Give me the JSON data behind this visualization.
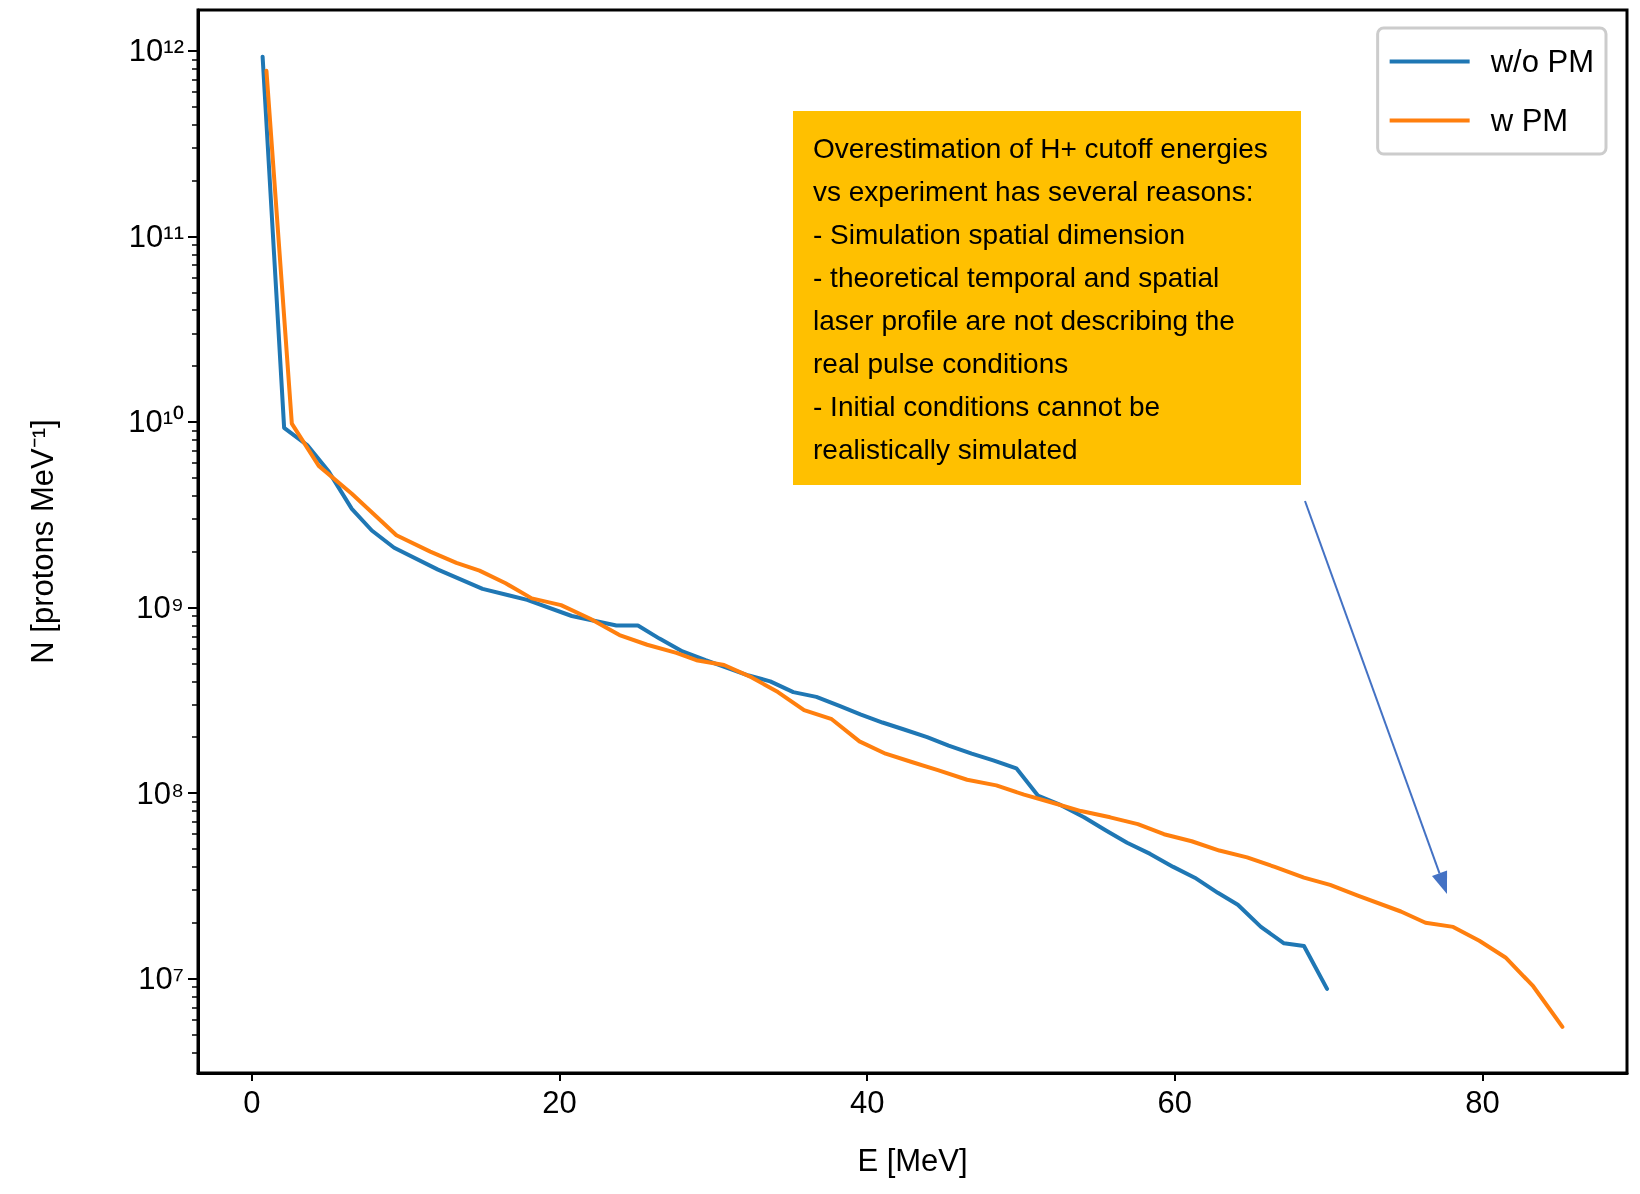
{
  "chart_data": {
    "type": "line",
    "xlabel": "E [MeV]",
    "ylabel": "N [protons MeV⁻¹]",
    "xlim": [
      -3.5,
      89.4
    ],
    "xticks": [
      0,
      20,
      40,
      60,
      80
    ],
    "ylim": [
      3100000,
      1660000000000
    ],
    "log": "y",
    "yticks": [
      {
        "value": 10000000,
        "label": "10⁷"
      },
      {
        "value": 100000000,
        "label": "10⁸"
      },
      {
        "value": 1000000000,
        "label": "10⁹"
      },
      {
        "value": 10000000000,
        "label": "10¹⁰"
      },
      {
        "value": 100000000000,
        "label": "10¹¹"
      },
      {
        "value": 1000000000000,
        "label": "10¹²"
      }
    ],
    "grid": false,
    "legend": "top right",
    "marker": "none",
    "line_style": "solid",
    "series": [
      {
        "name": "w/o PM",
        "color": "#1f77b4",
        "x": [
          0.7,
          2.1,
          3.6,
          5.0,
          6.5,
          7.8,
          9.25,
          12.1,
          15.0,
          17.9,
          20.8,
          23.7,
          25.1,
          26.5,
          28.0,
          29.5,
          32.3,
          33.7,
          35.2,
          36.7,
          38.2,
          39.6,
          41.0,
          42.4,
          43.9,
          45.3,
          46.8,
          48.2,
          49.7,
          51.1,
          52.6,
          54.1,
          55.5,
          56.9,
          58.4,
          59.9,
          61.3,
          62.8,
          64.1,
          65.6,
          67.1,
          68.4,
          69.9
        ],
        "values": [
          930000000000,
          9300000000,
          7500000000,
          5400000000,
          3400000000,
          2600000000,
          2100000000,
          1600000000,
          1260000000,
          1100000000,
          900000000,
          800000000,
          800000000,
          680000000,
          580000000,
          520000000,
          430000000,
          400000000,
          350000000,
          330000000,
          295000000,
          265000000,
          240000000,
          220000000,
          200000000,
          180000000,
          163000000,
          150000000,
          136000000,
          97000000,
          86000000,
          74000000,
          63000000,
          54000000,
          47000000,
          40000000,
          35000000,
          29000000,
          25000000,
          19000000,
          15500000,
          15000000,
          8800000
        ]
      },
      {
        "name": "w PM",
        "color": "#ff7f0e",
        "x": [
          0.95,
          2.6,
          4.35,
          6.5,
          7.9,
          9.4,
          11.6,
          13.3,
          14.8,
          16.5,
          18.2,
          20.1,
          22.0,
          23.9,
          25.7,
          27.6,
          28.9,
          30.7,
          32.5,
          34.2,
          35.9,
          37.7,
          39.5,
          41.2,
          42.9,
          44.6,
          46.5,
          48.4,
          50.2,
          52.0,
          53.9,
          55.8,
          57.6,
          59.3,
          61.1,
          62.9,
          64.7,
          66.5,
          68.4,
          70.1,
          71.9,
          74.7,
          76.3,
          78.1,
          79.8,
          81.5,
          83.3,
          85.2
        ],
        "values": [
          780000000000,
          9800000000,
          5800000000,
          4100000000,
          3200000000,
          2450000000,
          2000000000,
          1740000000,
          1580000000,
          1350000000,
          1120000000,
          1030000000,
          870000000,
          710000000,
          630000000,
          570000000,
          520000000,
          490000000,
          420000000,
          350000000,
          280000000,
          250000000,
          190000000,
          163000000,
          147000000,
          133000000,
          118000000,
          110000000,
          98000000,
          89000000,
          80000000,
          74000000,
          68000000,
          60000000,
          55000000,
          49000000,
          45000000,
          40000000,
          35000000,
          32000000,
          28000000,
          23000000,
          20000000,
          19000000,
          16000000,
          13000000,
          9100000,
          5500000
        ]
      }
    ],
    "annotations": [
      "Overestimation of H+ cutoff energies vs experiment has several reasons:\n- Simulation spatial dimension\n- theoretical temporal and spatial laser profile are not describing the real pulse conditions\n- Initial conditions cannot be realistically simulated"
    ]
  }
}
